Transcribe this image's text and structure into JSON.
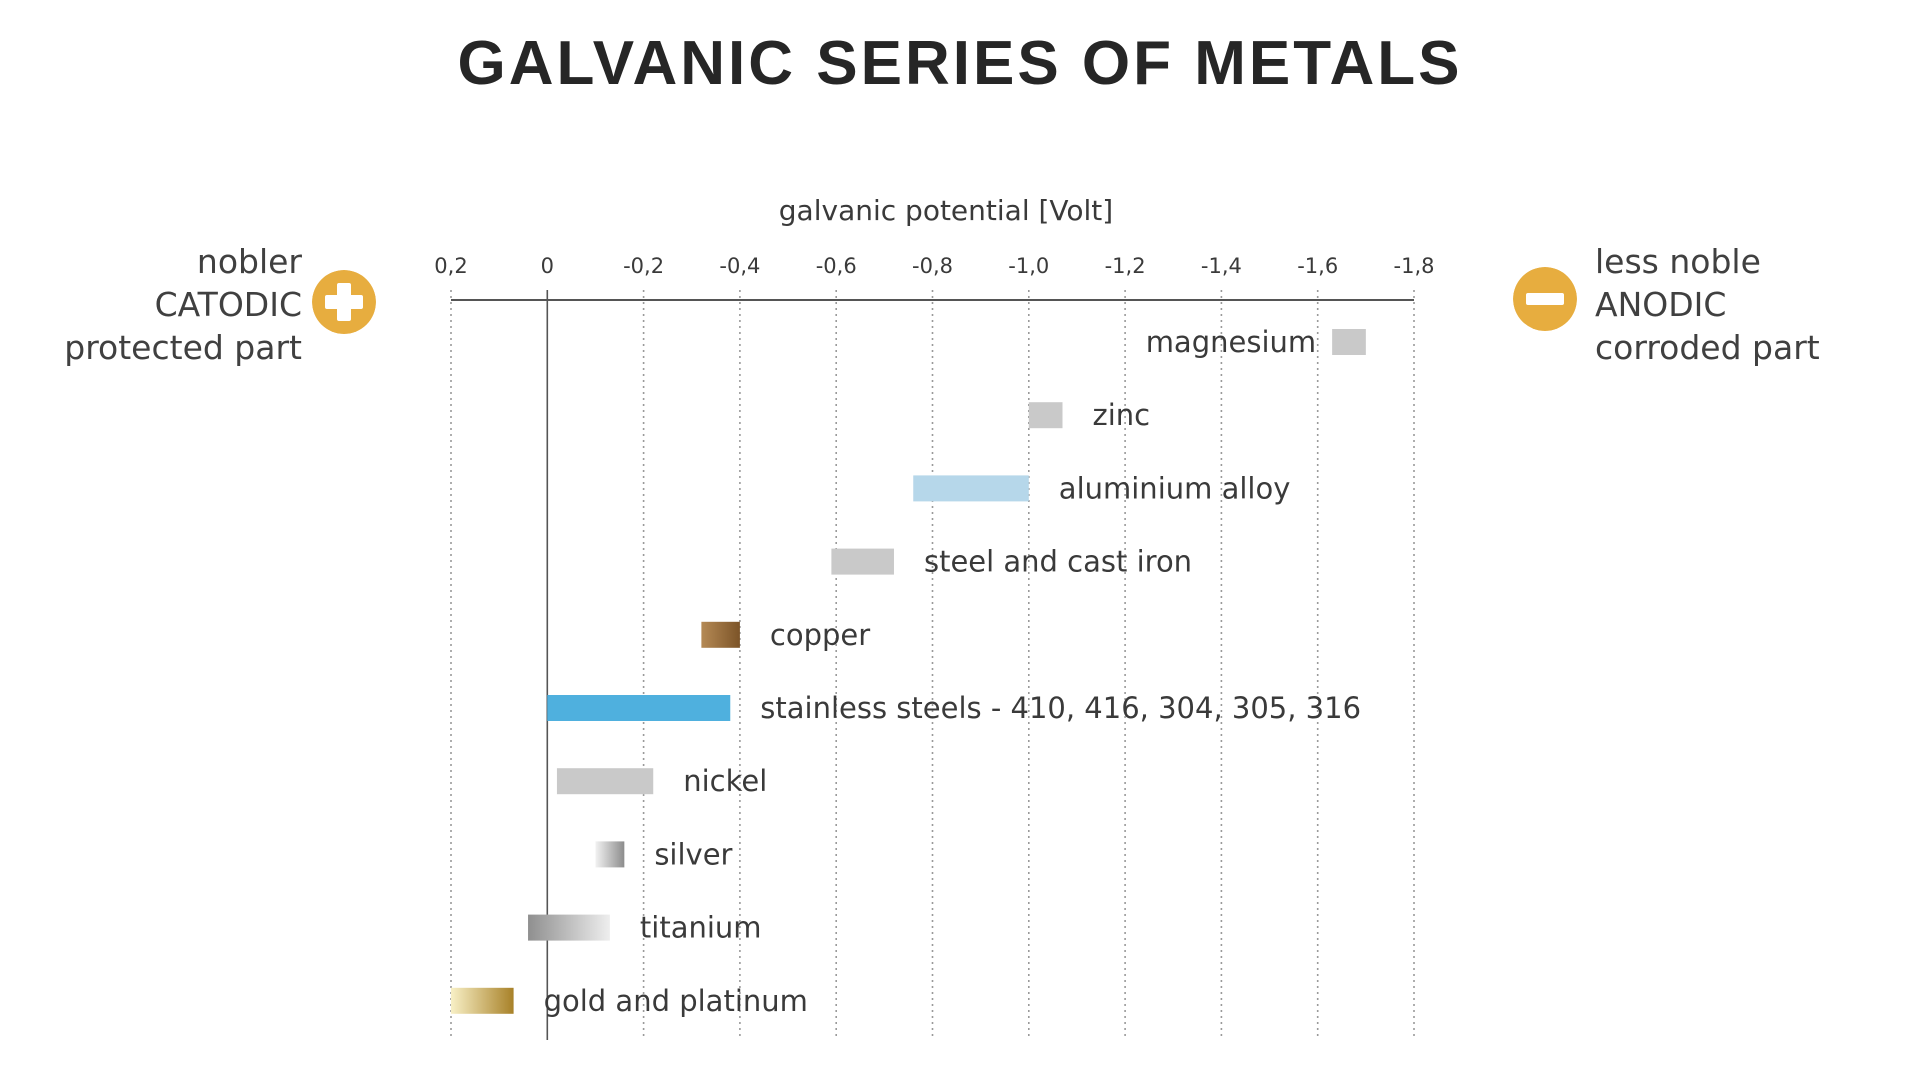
{
  "chart_data": {
    "type": "bar",
    "title": "GALVANIC SERIES OF METALS",
    "xlabel": "galvanic potential [Volt]",
    "x_ticks": [
      "0,2",
      "0",
      "-0,2",
      "-0,4",
      "-0,6",
      "-0,8",
      "-1,0",
      "-1,2",
      "-1,4",
      "-1,6",
      "-1,8"
    ],
    "xlim": [
      0.2,
      -1.8
    ],
    "grid": true,
    "series": [
      {
        "label": "magnesium",
        "range": [
          -1.63,
          -1.7
        ],
        "color": "#c9c9c9",
        "color_end": "#c9c9c9",
        "label_side": "left"
      },
      {
        "label": "zinc",
        "range": [
          -1.0,
          -1.07
        ],
        "color": "#c9c9c9",
        "color_end": "#c9c9c9",
        "label_side": "right"
      },
      {
        "label": "aluminium alloy",
        "range": [
          -0.76,
          -1.0
        ],
        "color": "#b6d7ea",
        "color_end": "#b6d7ea",
        "label_side": "right"
      },
      {
        "label": "steel and cast iron",
        "range": [
          -0.59,
          -0.72
        ],
        "color": "#c9c9c9",
        "color_end": "#c9c9c9",
        "label_side": "right"
      },
      {
        "label": "copper",
        "range": [
          -0.32,
          -0.4
        ],
        "color": "#b58a55",
        "color_end": "#7c5428",
        "label_side": "right"
      },
      {
        "label": "stainless steels - 410, 416, 304, 305, 316",
        "range": [
          0.0,
          -0.38
        ],
        "color": "#4fb0de",
        "color_end": "#4fb0de",
        "label_side": "right"
      },
      {
        "label": "nickel",
        "range": [
          -0.02,
          -0.22
        ],
        "color": "#c9c9c9",
        "color_end": "#c9c9c9",
        "label_side": "right"
      },
      {
        "label": "silver",
        "range": [
          -0.1,
          -0.16
        ],
        "color": "#f2f2f2",
        "color_end": "#8c8c8c",
        "label_side": "right"
      },
      {
        "label": "titanium",
        "range": [
          0.04,
          -0.13
        ],
        "color": "#8f8f8f",
        "color_end": "#eeeeee",
        "label_side": "right"
      },
      {
        "label": "gold and platinum",
        "range": [
          0.2,
          0.07
        ],
        "color": "#f8f0c6",
        "color_end": "#a88128",
        "label_side": "right"
      }
    ]
  },
  "left_side": {
    "lines": [
      "nobler",
      "CATODIC",
      "protected part"
    ],
    "icon": "plus-circle-icon",
    "color": "#e7ad3f"
  },
  "right_side": {
    "lines": [
      "less noble",
      "ANODIC",
      "corroded part"
    ],
    "icon": "minus-circle-icon",
    "color": "#e7ad3f"
  }
}
